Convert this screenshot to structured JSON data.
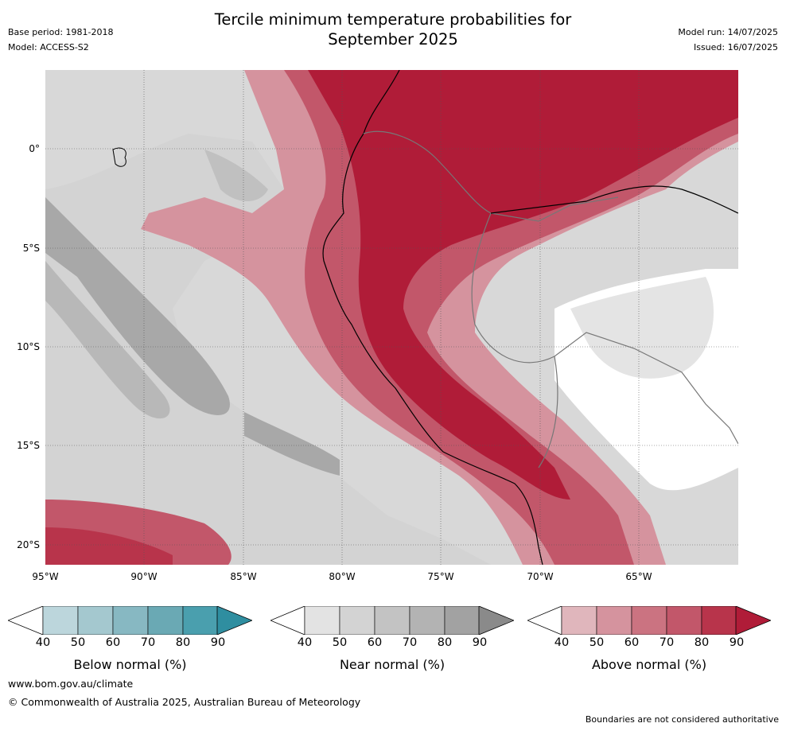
{
  "header": {
    "title_line1": "Tercile minimum temperature probabilities for",
    "title_line2": "September 2025",
    "base_period": "Base period: 1981-2018",
    "model": "Model: ACCESS-S2",
    "model_run": "Model run: 14/07/2025",
    "issued": "Issued: 16/07/2025"
  },
  "map": {
    "lat_labels": [
      "0°",
      "5°S",
      "10°S",
      "15°S",
      "20°S"
    ],
    "lon_labels": [
      "95°W",
      "90°W",
      "85°W",
      "80°W",
      "75°W",
      "70°W",
      "65°W"
    ],
    "grid": true,
    "layers": [
      "ocean-coastline",
      "country-borders",
      "probability-contours"
    ]
  },
  "colorbars": [
    {
      "label": "Below normal (%)",
      "ticks": [
        "40",
        "50",
        "60",
        "70",
        "80",
        "90"
      ],
      "colors": [
        "#bcd6dc",
        "#a4c8cf",
        "#87b8c2",
        "#6aa9b4",
        "#4a9fae",
        "#2f8ea0"
      ]
    },
    {
      "label": "Near normal (%)",
      "ticks": [
        "40",
        "50",
        "60",
        "70",
        "80",
        "90"
      ],
      "colors": [
        "#e3e3e3",
        "#d3d3d3",
        "#c3c3c3",
        "#b3b3b3",
        "#a2a2a2",
        "#8a8a8a"
      ]
    },
    {
      "label": "Above normal (%)",
      "ticks": [
        "40",
        "50",
        "60",
        "70",
        "80",
        "90"
      ],
      "colors": [
        "#e0b6bc",
        "#d5939e",
        "#cb7381",
        "#c2576a",
        "#b8344b",
        "#b01c38"
      ]
    }
  ],
  "footer": {
    "url": "www.bom.gov.au/climate",
    "copyright": "© Commonwealth of Australia 2025, Australian Bureau of Meteorology",
    "disclaimer": "Boundaries are not considered authoritative"
  }
}
